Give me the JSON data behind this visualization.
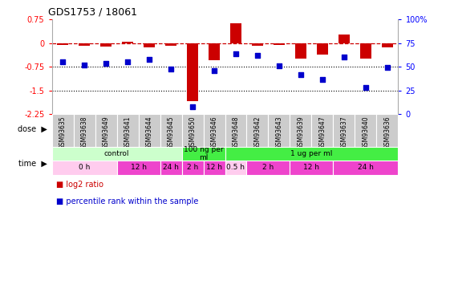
{
  "title": "GDS1753 / 18061",
  "samples": [
    "GSM93635",
    "GSM93638",
    "GSM93649",
    "GSM93641",
    "GSM93644",
    "GSM93645",
    "GSM93650",
    "GSM93646",
    "GSM93648",
    "GSM93642",
    "GSM93643",
    "GSM93639",
    "GSM93647",
    "GSM93637",
    "GSM93640",
    "GSM93636"
  ],
  "log2_ratio": [
    -0.05,
    -0.08,
    -0.1,
    0.05,
    -0.12,
    -0.08,
    -1.85,
    -0.55,
    0.62,
    -0.08,
    -0.06,
    -0.5,
    -0.35,
    0.28,
    -0.5,
    -0.12
  ],
  "percentile_rank": [
    55,
    52,
    54,
    55,
    58,
    48,
    8,
    46,
    64,
    62,
    51,
    42,
    37,
    60,
    28,
    49
  ],
  "ylim_left": [
    -2.25,
    0.75
  ],
  "ylim_right": [
    0,
    100
  ],
  "yticks_left": [
    0.75,
    0,
    -0.75,
    -1.5,
    -2.25
  ],
  "yticks_right": [
    100,
    75,
    50,
    25,
    0
  ],
  "hline_y": 0,
  "dotted_lines": [
    -0.75,
    -1.5
  ],
  "bar_color": "#cc0000",
  "dot_color": "#0000cc",
  "dose_groups": [
    {
      "label": "control",
      "start": 0,
      "end": 6,
      "color": "#ccffcc"
    },
    {
      "label": "100 ng per\nml",
      "start": 6,
      "end": 8,
      "color": "#44ee44"
    },
    {
      "label": "1 ug per ml",
      "start": 8,
      "end": 16,
      "color": "#44ee44"
    }
  ],
  "time_groups": [
    {
      "label": "0 h",
      "start": 0,
      "end": 3,
      "color": "#ffccee"
    },
    {
      "label": "12 h",
      "start": 3,
      "end": 5,
      "color": "#ee44cc"
    },
    {
      "label": "24 h",
      "start": 5,
      "end": 6,
      "color": "#ee44cc"
    },
    {
      "label": "2 h",
      "start": 6,
      "end": 7,
      "color": "#ee44cc"
    },
    {
      "label": "12 h",
      "start": 7,
      "end": 8,
      "color": "#ee44cc"
    },
    {
      "label": "0.5 h",
      "start": 8,
      "end": 9,
      "color": "#ffccee"
    },
    {
      "label": "2 h",
      "start": 9,
      "end": 11,
      "color": "#ee44cc"
    },
    {
      "label": "12 h",
      "start": 11,
      "end": 13,
      "color": "#ee44cc"
    },
    {
      "label": "24 h",
      "start": 13,
      "end": 16,
      "color": "#ee44cc"
    }
  ],
  "sample_bg": "#cccccc",
  "sample_border": "#ffffff",
  "background_color": "#ffffff",
  "legend_items": [
    {
      "label": "log2 ratio",
      "color": "#cc0000"
    },
    {
      "label": "percentile rank within the sample",
      "color": "#0000cc"
    }
  ]
}
